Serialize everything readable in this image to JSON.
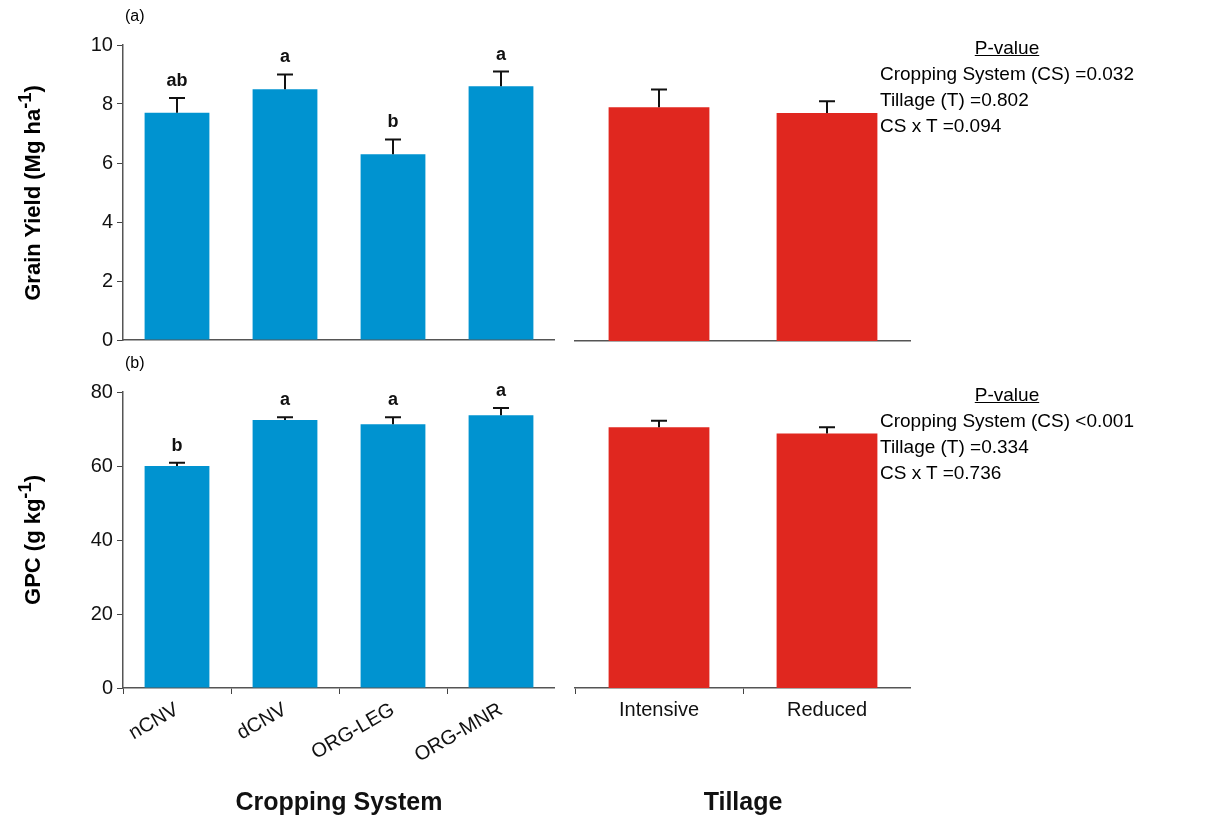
{
  "chart_data": [
    {
      "type": "bar",
      "title": "(a)",
      "ylabel": "Grain Yield (Mg ha$^{-1}$)",
      "categories": [
        null,
        null,
        null,
        null
      ],
      "values": [
        7.7,
        8.5,
        6.3,
        8.6
      ],
      "errors": [
        [
          7.7,
          8.2
        ],
        [
          8.5,
          9.0
        ],
        [
          6.3,
          6.8
        ],
        [
          8.6,
          9.1
        ]
      ],
      "value_labels": [
        "ab",
        "a",
        "b",
        "a"
      ],
      "color": "#0093d0",
      "ylim": [
        0,
        10
      ],
      "yticks": [
        0,
        2,
        4,
        6,
        8,
        10
      ],
      "tick_labels": "y"
    },
    {
      "type": "bar",
      "categories": [
        null,
        null
      ],
      "values": [
        7.9,
        7.7
      ],
      "errors": [
        [
          7.9,
          8.5
        ],
        [
          7.7,
          8.1
        ]
      ],
      "color": "#e0271f",
      "ylim": [
        0,
        10
      ],
      "tick_labels": false,
      "annotations": [
        "P-value",
        "Cropping System (CS) =0.032",
        "Tillage (T) =0.802",
        "CS x T =0.094"
      ]
    },
    {
      "type": "bar",
      "title": "(b)",
      "ylabel": "GPC (g kg$^{-1}$)",
      "xlabel": "Cropping System",
      "categories": [
        "nCNV",
        "dCNV",
        "ORG-LEG",
        "ORG-MNR"
      ],
      "values": [
        60,
        72.4,
        71.3,
        73.7
      ],
      "errors": [
        [
          60,
          60.9
        ],
        [
          72.4,
          73.2
        ],
        [
          71.3,
          73.2
        ],
        [
          73.7,
          75.7
        ]
      ],
      "value_labels": [
        "b",
        "a",
        "a",
        "a"
      ],
      "color": "#0093d0",
      "ylim": [
        0,
        80
      ],
      "yticks": [
        0,
        20,
        40,
        60,
        80
      ]
    },
    {
      "type": "bar",
      "xlabel": "Tillage",
      "categories": [
        "Intensive",
        "Reduced"
      ],
      "values": [
        70.5,
        68.8
      ],
      "errors": [
        [
          70.5,
          72.2
        ],
        [
          68.8,
          70.5
        ]
      ],
      "color": "#e0271f",
      "ylim": [
        0,
        80
      ],
      "tick_labels": "x",
      "annotations": [
        "P-value",
        "Cropping System (CS) <0.001",
        "Tillage (T) =0.334",
        "CS x T =0.736"
      ]
    }
  ]
}
